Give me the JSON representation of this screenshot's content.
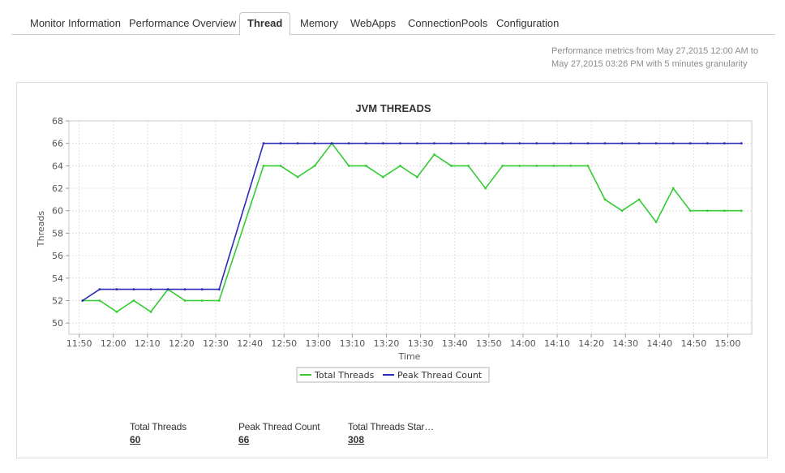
{
  "tabs": [
    {
      "label": "Monitor Information",
      "active": false
    },
    {
      "label": "Performance Overview",
      "active": false
    },
    {
      "label": "Thread",
      "active": true
    },
    {
      "label": "Memory",
      "active": false
    },
    {
      "label": "WebApps",
      "active": false
    },
    {
      "label": "ConnectionPools",
      "active": false
    },
    {
      "label": "Configuration",
      "active": false
    }
  ],
  "range_note": {
    "line1": "Performance metrics from May 27,2015 12:00 AM to",
    "line2": "May 27,2015 03:26 PM with 5 minutes granularity"
  },
  "colors": {
    "total": "#33cc33",
    "peak": "#2a2ab8",
    "grid": "#e0e0e0"
  },
  "chart_data": {
    "type": "line",
    "title": "JVM THREADS",
    "xlabel": "Time",
    "ylabel": "Threads",
    "ylim": [
      49,
      68
    ],
    "yticks": [
      50,
      52,
      54,
      56,
      58,
      60,
      62,
      64,
      66,
      68
    ],
    "xlim": [
      "11:47",
      "15:07"
    ],
    "xticks": [
      "11:50",
      "12:00",
      "12:10",
      "12:20",
      "12:30",
      "12:40",
      "12:50",
      "13:00",
      "13:10",
      "13:20",
      "13:30",
      "13:40",
      "13:50",
      "14:00",
      "14:10",
      "14:20",
      "14:30",
      "14:40",
      "14:50",
      "15:00"
    ],
    "grid": true,
    "legend_position": "bottom",
    "x": [
      "11:51",
      "11:56",
      "12:01",
      "12:06",
      "12:11",
      "12:16",
      "12:21",
      "12:26",
      "12:31",
      "12:44",
      "12:49",
      "12:54",
      "12:59",
      "13:04",
      "13:09",
      "13:14",
      "13:19",
      "13:24",
      "13:29",
      "13:34",
      "13:39",
      "13:44",
      "13:49",
      "13:54",
      "13:59",
      "14:04",
      "14:09",
      "14:14",
      "14:19",
      "14:24",
      "14:29",
      "14:34",
      "14:39",
      "14:44",
      "14:49",
      "14:54",
      "14:59",
      "15:04"
    ],
    "series": [
      {
        "name": "Total Threads",
        "values": [
          52,
          52,
          51,
          52,
          51,
          53,
          52,
          52,
          52,
          64,
          64,
          63,
          64,
          66,
          64,
          64,
          63,
          64,
          63,
          65,
          64,
          64,
          62,
          64,
          64,
          64,
          64,
          64,
          64,
          61,
          60,
          61,
          59,
          62,
          60,
          60,
          60,
          60
        ]
      },
      {
        "name": "Peak Thread Count",
        "values": [
          52,
          53,
          53,
          53,
          53,
          53,
          53,
          53,
          53,
          66,
          66,
          66,
          66,
          66,
          66,
          66,
          66,
          66,
          66,
          66,
          66,
          66,
          66,
          66,
          66,
          66,
          66,
          66,
          66,
          66,
          66,
          66,
          66,
          66,
          66,
          66,
          66,
          66
        ]
      }
    ]
  },
  "stats": [
    {
      "label": "Total Threads",
      "value": "60"
    },
    {
      "label": "Peak Thread Count",
      "value": "66"
    },
    {
      "label": "Total Threads Star…",
      "value": "308"
    }
  ]
}
